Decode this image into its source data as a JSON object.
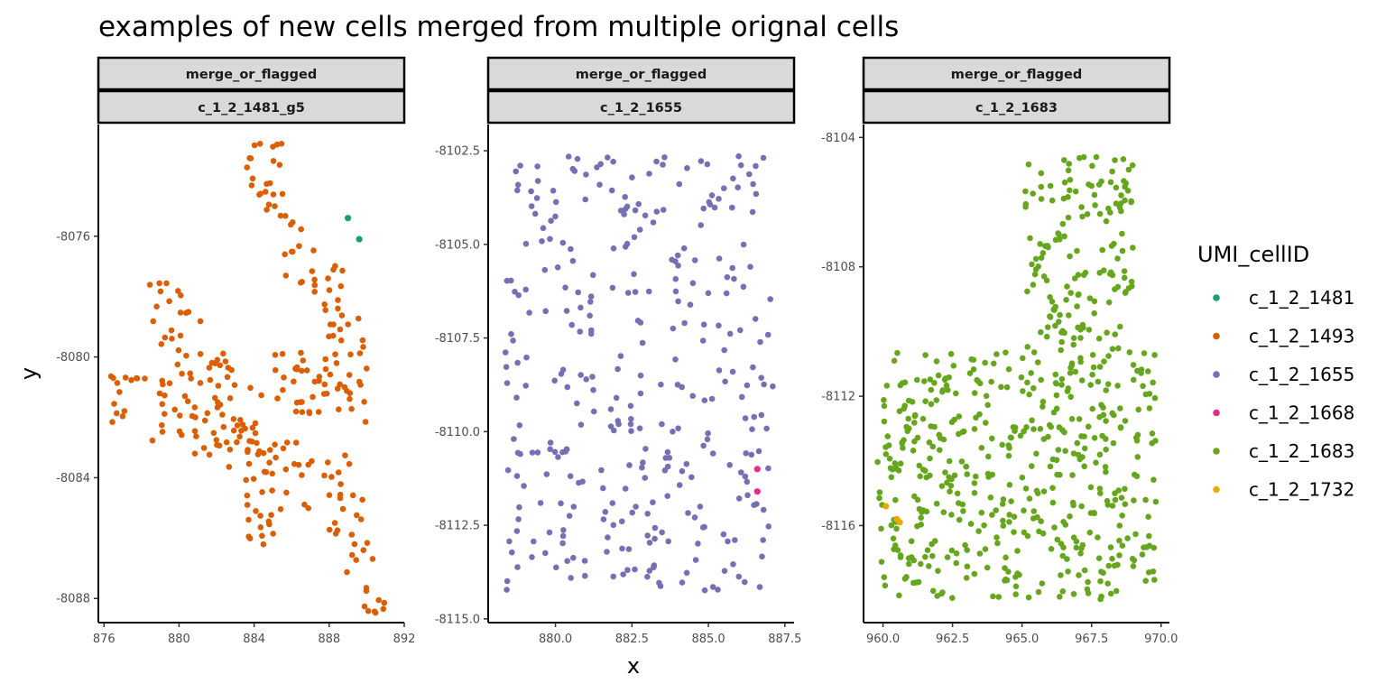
{
  "chart_data": {
    "type": "scatter",
    "title": "examples of new cells merged from multiple orignal cells",
    "xlabel": "x",
    "ylabel": "y",
    "facet_header": "merge_or_flagged",
    "legend": {
      "title": "UMI_cellID",
      "position": "right",
      "entries": [
        {
          "label": "c_1_2_1481",
          "color": "#1b9e77"
        },
        {
          "label": "c_1_2_1493",
          "color": "#d95f02"
        },
        {
          "label": "c_1_2_1655",
          "color": "#7570b3"
        },
        {
          "label": "c_1_2_1668",
          "color": "#e7298a"
        },
        {
          "label": "c_1_2_1683",
          "color": "#66a61e"
        },
        {
          "label": "c_1_2_1732",
          "color": "#e6ab02"
        }
      ]
    },
    "panels": [
      {
        "facet": "c_1_2_1481_g5",
        "xlim": [
          875.7,
          892.0
        ],
        "ylim": [
          -8088.8,
          -8072.3
        ],
        "xticks": [
          876,
          880,
          884,
          888,
          892
        ],
        "yticks": [
          -8076,
          -8080,
          -8084,
          -8088
        ],
        "highlight": [
          {
            "series": "c_1_2_1481",
            "x": 889.0,
            "y": -8075.4
          },
          {
            "series": "c_1_2_1481",
            "x": 889.6,
            "y": -8076.1
          }
        ]
      },
      {
        "facet": "c_1_2_1655",
        "xlim": [
          877.8,
          887.8
        ],
        "ylim": [
          -8115.1,
          -8101.8
        ],
        "xticks": [
          880.0,
          882.5,
          885.0,
          887.5
        ],
        "yticks": [
          -8102.5,
          -8105.0,
          -8107.5,
          -8110.0,
          -8112.5,
          -8115.0
        ],
        "highlight": [
          {
            "series": "c_1_2_1668",
            "x": 886.6,
            "y": -8111.0
          },
          {
            "series": "c_1_2_1668",
            "x": 886.6,
            "y": -8111.6
          }
        ]
      },
      {
        "facet": "c_1_2_1683",
        "xlim": [
          959.3,
          970.3
        ],
        "ylim": [
          -8119.0,
          -8103.6
        ],
        "xticks": [
          960.0,
          962.5,
          965.0,
          967.5,
          970.0
        ],
        "yticks": [
          -8104,
          -8108,
          -8112,
          -8116
        ],
        "highlight": [
          {
            "series": "c_1_2_1732",
            "x": 960.1,
            "y": -8115.4
          },
          {
            "series": "c_1_2_1732",
            "x": 960.5,
            "y": -8115.8
          },
          {
            "series": "c_1_2_1732",
            "x": 960.6,
            "y": -8115.9
          }
        ]
      }
    ]
  }
}
